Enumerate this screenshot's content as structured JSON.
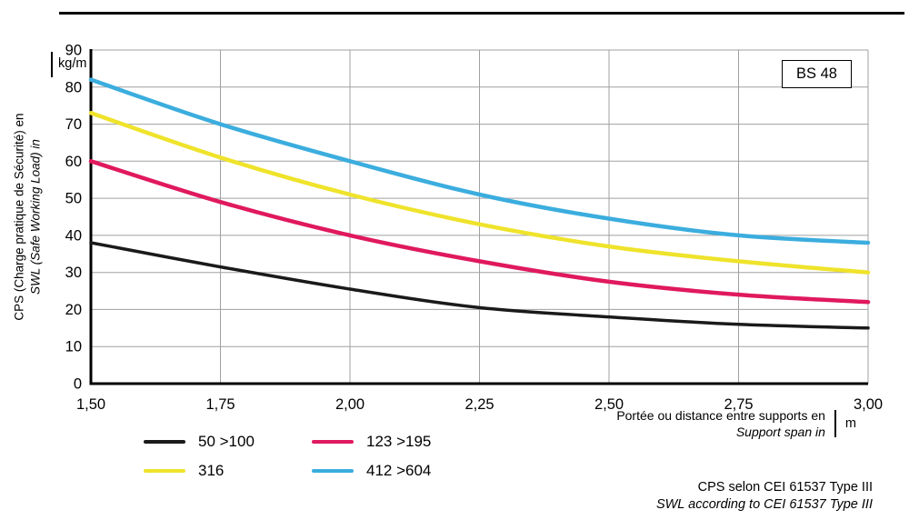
{
  "page": {
    "bs_label": "BS 48",
    "footer_line_fr": "CPS selon CEI 61537 Type III",
    "footer_line_en": "SWL according to CEI 61537 Type III"
  },
  "axis": {
    "y_label_fr": "CPS (Charge pratique de Sécurité) en",
    "y_label_en": "SWL (Safe Working Load) in",
    "y_unit": "kg/m",
    "x_label_fr": "Portée ou distance entre supports en",
    "x_label_en": "Support span in",
    "x_unit": "m"
  },
  "chart_data": {
    "type": "line",
    "title": "",
    "xlabel": "Portée ou distance entre supports en / Support span in (m)",
    "ylabel": "CPS (Charge pratique de Sécurité) en / SWL (Safe Working Load) in (kg/m)",
    "x": [
      1.5,
      1.75,
      2.0,
      2.25,
      2.5,
      2.75,
      3.0
    ],
    "x_tick_labels": [
      "1,50",
      "1,75",
      "2,00",
      "2,25",
      "2,50",
      "2,75",
      "3,00"
    ],
    "y_ticks": [
      0,
      10,
      20,
      30,
      40,
      50,
      60,
      70,
      80,
      90
    ],
    "xlim": [
      1.5,
      3.0
    ],
    "ylim": [
      0,
      90
    ],
    "grid": true,
    "grid_color": "#a0a0a0",
    "legend_position": "bottom-left",
    "legend_order": [
      0,
      2,
      1,
      3
    ],
    "series": [
      {
        "name": "50 >100",
        "color": "#1a1a1a",
        "width": 3.5,
        "values": [
          38,
          31.5,
          25.5,
          20.5,
          18,
          16,
          15
        ]
      },
      {
        "name": "316",
        "color": "#efe32b",
        "width": 4.5,
        "values": [
          73,
          61,
          51,
          43,
          37,
          33,
          30
        ]
      },
      {
        "name": "123 >195",
        "color": "#e0195e",
        "width": 4.5,
        "values": [
          60,
          49,
          40,
          33,
          27.5,
          24,
          22
        ]
      },
      {
        "name": "412 >604",
        "color": "#3badde",
        "width": 4.5,
        "values": [
          82,
          70,
          60,
          51,
          44.5,
          40,
          38
        ]
      }
    ]
  }
}
